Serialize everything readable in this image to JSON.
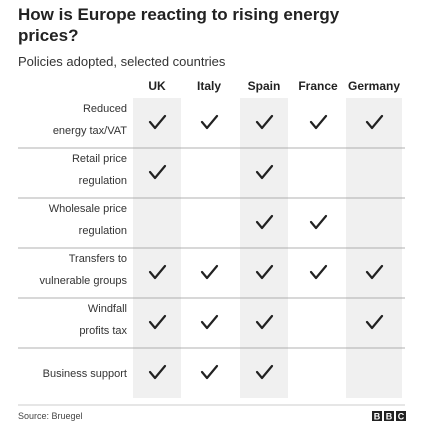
{
  "title": [
    "How is Europe reacting to rising energy",
    "prices?"
  ],
  "subtitle": "Policies adopted, selected countries",
  "columns": [
    "UK",
    "Italy",
    "Spain",
    "France",
    "Germany"
  ],
  "rows": [
    {
      "label": [
        "Reduced",
        "energy tax/VAT"
      ],
      "cells": [
        true,
        true,
        true,
        true,
        true
      ]
    },
    {
      "label": [
        "Retail price",
        "regulation"
      ],
      "cells": [
        true,
        false,
        true,
        false,
        false
      ]
    },
    {
      "label": [
        "Wholesale price",
        "regulation"
      ],
      "cells": [
        false,
        false,
        true,
        true,
        false
      ]
    },
    {
      "label": [
        "Transfers to",
        "vulnerable groups"
      ],
      "cells": [
        true,
        true,
        true,
        true,
        true
      ]
    },
    {
      "label": [
        "Windfall",
        "profits tax"
      ],
      "cells": [
        true,
        true,
        true,
        false,
        true
      ]
    },
    {
      "label": [
        "Business support"
      ],
      "cells": [
        true,
        true,
        true,
        false,
        false
      ]
    }
  ],
  "source": "Source: Bruegel",
  "logo": [
    "B",
    "B",
    "C"
  ]
}
